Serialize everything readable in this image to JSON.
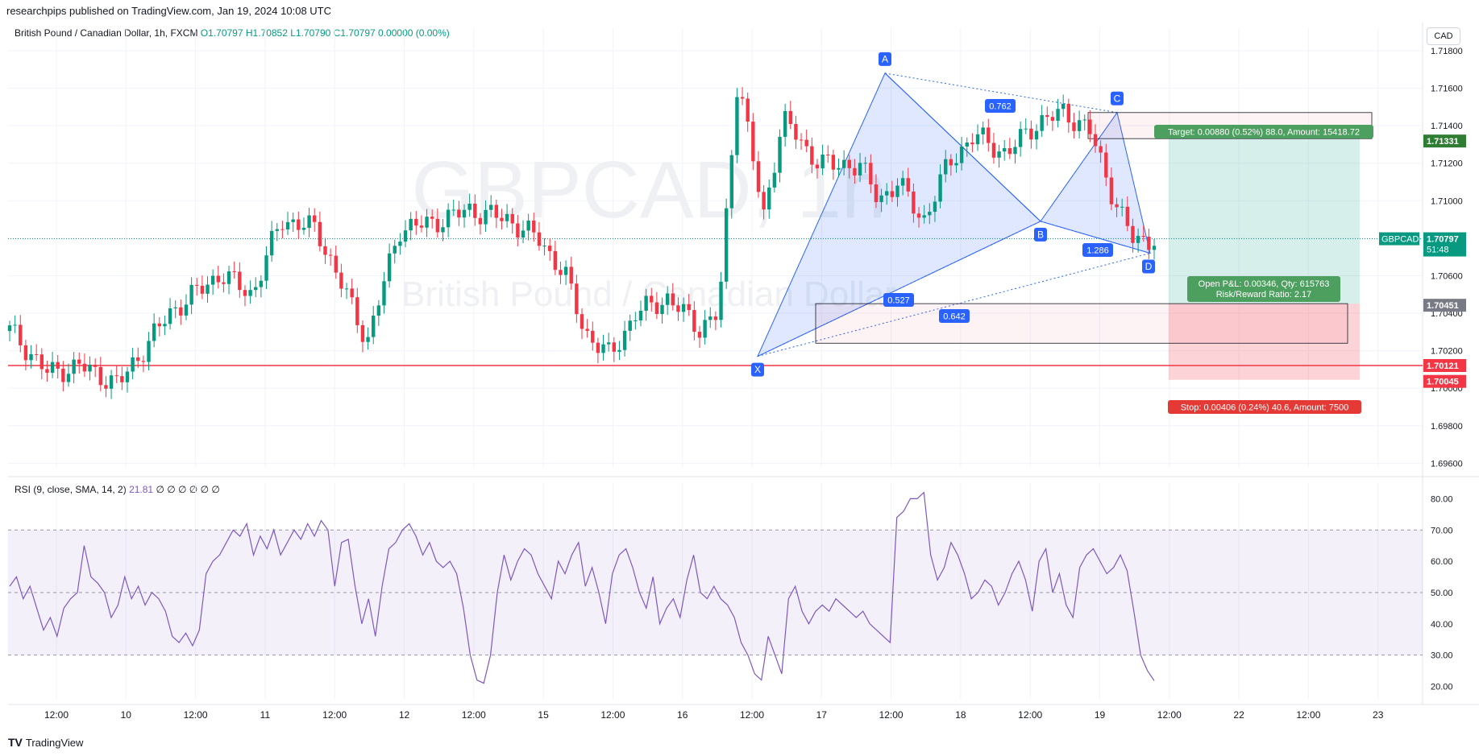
{
  "header": {
    "published": "researchpips published on TradingView.com, Jan 19, 2024 10:08 UTC"
  },
  "legend": {
    "symbol": "British Pound / Canadian Dollar, 1h, FXCM",
    "o": "O1.70797",
    "h": "H1.70852",
    "l": "L1.70790",
    "c": "C1.70797",
    "chg": "0.00000 (0.00%)"
  },
  "currency_button": "CAD",
  "watermark": {
    "ticker": "GBPCAD, 1h",
    "name": "British Pound / Canadian Dollar"
  },
  "rsi_legend": {
    "label": "RSI (9, close, SMA, 14, 2)",
    "value": "21.81",
    "extras": "∅ ∅ ∅ ∅ ∅ ∅"
  },
  "footer": {
    "brand": "TradingView"
  },
  "colors": {
    "up": "#089981",
    "down": "#f23645",
    "pattern": "#2962ff",
    "rsi": "#7e57c2",
    "support": "#f23645"
  },
  "chart_data": {
    "type": "candlestick",
    "price_axis": {
      "ticks": [
        "1.71800",
        "1.71600",
        "1.71400",
        "1.71200",
        "1.71000",
        "1.70800",
        "1.70600",
        "1.70400",
        "1.70200",
        "1.70000",
        "1.69800",
        "1.69600"
      ],
      "ylim": [
        1.6958,
        1.7192
      ]
    },
    "time_axis": {
      "ticks": [
        "12:00",
        "10",
        "12:00",
        "11",
        "12:00",
        "12",
        "12:00",
        "15",
        "12:00",
        "16",
        "12:00",
        "17",
        "12:00",
        "18",
        "12:00",
        "19",
        "12:00",
        "22",
        "12:00",
        "23"
      ]
    },
    "price_labels": {
      "last": "1.70797",
      "last_symbol": "GBPCAD",
      "countdown": "51:48",
      "target_line": "1.71331",
      "entry_line": "1.70451",
      "support": "1.70121",
      "stop_line": "1.70045"
    },
    "harmonic_pattern": {
      "points": [
        {
          "label": "X",
          "price": 1.7017
        },
        {
          "label": "A",
          "price": 1.7168
        },
        {
          "label": "B",
          "price": 1.7089
        },
        {
          "label": "C",
          "price": 1.7147
        },
        {
          "label": "D",
          "price": 1.7072
        }
      ],
      "ratios": [
        "0.762",
        "1.286",
        "0.527",
        "0.642"
      ]
    },
    "position": {
      "target_text": "Target: 0.00880 (0.52%) 88.0, Amount: 15418.72",
      "stop_text": "Stop: 0.00406 (0.24%) 40.6, Amount: 7500",
      "pnl_text": "Open P&L: 0.00346, Qty: 615763",
      "rr_text": "Risk/Reward Ratio: 2.17"
    },
    "rsi": {
      "ticks": [
        "80.00",
        "70.00",
        "60.00",
        "50.00",
        "40.00",
        "30.00",
        "20.00"
      ],
      "ylim": [
        16,
        85
      ],
      "overbought": 70,
      "middle": 50,
      "oversold": 30,
      "values": [
        52,
        55,
        48,
        52,
        45,
        38,
        42,
        36,
        45,
        48,
        50,
        65,
        55,
        53,
        50,
        42,
        46,
        55,
        48,
        52,
        46,
        50,
        48,
        44,
        36,
        34,
        37,
        33,
        38,
        56,
        60,
        62,
        66,
        70,
        68,
        72,
        62,
        68,
        64,
        70,
        62,
        66,
        70,
        67,
        72,
        68,
        73,
        70,
        52,
        66,
        67,
        52,
        40,
        48,
        36,
        52,
        64,
        66,
        70,
        72,
        68,
        62,
        66,
        60,
        58,
        60,
        56,
        45,
        30,
        22,
        21,
        30,
        50,
        62,
        54,
        60,
        64,
        62,
        56,
        52,
        48,
        60,
        56,
        62,
        66,
        52,
        58,
        50,
        40,
        56,
        62,
        64,
        58,
        50,
        45,
        55,
        40,
        45,
        48,
        42,
        54,
        62,
        50,
        48,
        52,
        48,
        46,
        42,
        34,
        30,
        24,
        22,
        36,
        30,
        24,
        48,
        52,
        44,
        40,
        44,
        46,
        44,
        48,
        46,
        44,
        42,
        44,
        40,
        38,
        36,
        34,
        74,
        76,
        80,
        80,
        82,
        62,
        54,
        58,
        66,
        62,
        56,
        48,
        50,
        54,
        52,
        46,
        50,
        56,
        60,
        54,
        44,
        60,
        64,
        50,
        56,
        46,
        42,
        58,
        62,
        64,
        60,
        56,
        58,
        62,
        57,
        44,
        30,
        25,
        21.81
      ]
    }
  }
}
